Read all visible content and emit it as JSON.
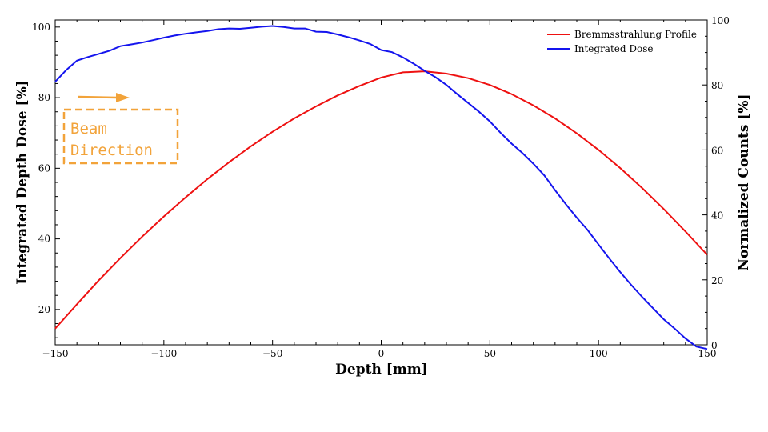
{
  "chart_data": {
    "type": "line",
    "xlabel": "Depth [mm]",
    "ylabel_left": "Integrated Depth Dose [%]",
    "ylabel_right": "Normalized Counts [%]",
    "xlim": [
      -150,
      150
    ],
    "ylim_left": [
      10,
      102
    ],
    "ylim_right": [
      0,
      100
    ],
    "x_ticks": [
      -150,
      -100,
      -50,
      0,
      50,
      100,
      150
    ],
    "x_tick_labels": [
      "−150",
      "−100",
      "−50",
      "0",
      "50",
      "100",
      "150"
    ],
    "y_left_ticks": [
      20,
      40,
      60,
      80,
      100
    ],
    "y_left_tick_labels": [
      "20",
      "40",
      "60",
      "80",
      "100"
    ],
    "y_right_ticks": [
      0,
      20,
      40,
      60,
      80,
      100
    ],
    "y_right_tick_labels": [
      "0",
      "20",
      "40",
      "60",
      "80",
      "100"
    ],
    "grid": false,
    "legend_position": "top-right",
    "series": [
      {
        "name": "Bremmsstrahlung Profile",
        "axis": "right",
        "color": "#ee1111",
        "x": [
          -150,
          -140,
          -130,
          -120,
          -110,
          -100,
          -90,
          -80,
          -70,
          -60,
          -50,
          -40,
          -30,
          -20,
          -10,
          0,
          10,
          20,
          30,
          40,
          50,
          60,
          70,
          80,
          90,
          100,
          110,
          120,
          130,
          140,
          150
        ],
        "y": [
          5,
          12.5,
          19.8,
          26.7,
          33.3,
          39.5,
          45.4,
          51,
          56.2,
          61.1,
          65.6,
          69.7,
          73.4,
          76.8,
          79.7,
          82.3,
          83.9,
          84.2,
          83.5,
          82.1,
          80,
          77.2,
          73.7,
          69.7,
          65.1,
          60,
          54.4,
          48.3,
          41.8,
          34.9,
          27.7
        ]
      },
      {
        "name": "Integrated Dose",
        "axis": "left",
        "color": "#1414ee",
        "x": [
          -150,
          -145,
          -140,
          -135,
          -130,
          -125,
          -120,
          -115,
          -110,
          -105,
          -100,
          -95,
          -90,
          -85,
          -80,
          -75,
          -70,
          -65,
          -60,
          -55,
          -50,
          -45,
          -40,
          -35,
          -30,
          -25,
          -20,
          -15,
          -10,
          -5,
          0,
          5,
          10,
          15,
          20,
          25,
          30,
          35,
          40,
          45,
          50,
          55,
          60,
          65,
          70,
          75,
          80,
          85,
          90,
          95,
          100,
          105,
          110,
          115,
          120,
          125,
          130,
          135,
          140,
          145,
          150
        ],
        "y": [
          84.5,
          87.8,
          90.5,
          91.5,
          92.4,
          93.3,
          94.6,
          95.1,
          95.6,
          96.3,
          97,
          97.6,
          98.1,
          98.5,
          98.9,
          99.4,
          99.6,
          99.5,
          99.8,
          100.1,
          100.3,
          100,
          99.6,
          99.6,
          98.7,
          98.6,
          97.9,
          97.1,
          96.2,
          95.2,
          93.5,
          92.9,
          91.4,
          89.6,
          87.6,
          85.8,
          83.6,
          81,
          78.5,
          76,
          73.3,
          70,
          67,
          64.3,
          61.3,
          58,
          53.8,
          49.8,
          46,
          42.5,
          38.4,
          34.4,
          30.6,
          27,
          23.6,
          20.4,
          17.2,
          14.6,
          11.8,
          9.5,
          8.8
        ]
      }
    ],
    "annotations": [
      {
        "text": "Beam\nDirection",
        "color": "#f2a33a",
        "style": "dashed box with right arrow"
      }
    ]
  }
}
